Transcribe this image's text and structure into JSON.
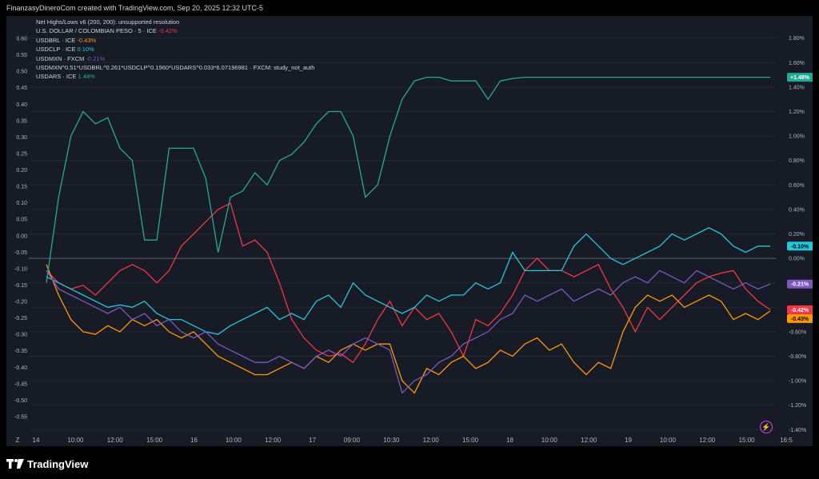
{
  "header": {
    "caption": "FinanzasyDineroCom created with TradingView.com, Sep 20, 2025 12:32 UTC-5"
  },
  "brand": {
    "name": "TradingView"
  },
  "chart_data": {
    "type": "line",
    "indicator": "Net Highs/Lows v6 (200, 200): unsupported resolution",
    "left_axis_ticks": [
      "0.60",
      "0.55",
      "0.50",
      "0.45",
      "0.40",
      "0.35",
      "0.30",
      "0.25",
      "0.20",
      "0.15",
      "0.10",
      "0.05",
      "0.00",
      "-0.05",
      "-0.10",
      "-0.15",
      "-0.20",
      "-0.25",
      "-0.30",
      "-0.35",
      "-0.40",
      "-0.45",
      "-0.50",
      "-0.55"
    ],
    "right_axis_ticks": [
      "1.80%",
      "1.60%",
      "1.40%",
      "1.20%",
      "1.00%",
      "0.80%",
      "0.60%",
      "0.40%",
      "0.20%",
      "0.00%",
      "-0.20%",
      "-0.40%",
      "-0.60%",
      "-0.80%",
      "-1.00%",
      "-1.20%",
      "-1.40%"
    ],
    "ylim_percent": [
      -1.45,
      1.85
    ],
    "x_ticks": [
      "14",
      "10:00",
      "12:00",
      "15:00",
      "16",
      "10:00",
      "12:00",
      "17",
      "09:00",
      "10:30",
      "12:00",
      "15:00",
      "18",
      "10:00",
      "12:00",
      "19",
      "10:00",
      "12:00",
      "15:00",
      "16:5"
    ],
    "series": [
      {
        "name": "U.S. DOLLAR / COLOMBIAN PESO · 5 · ICE",
        "last": "-0.42%",
        "color": "#f23645",
        "values": [
          -0.1,
          -0.2,
          -0.25,
          -0.22,
          -0.3,
          -0.2,
          -0.1,
          -0.05,
          -0.1,
          -0.2,
          -0.1,
          0.1,
          0.2,
          0.3,
          0.4,
          0.45,
          0.1,
          0.15,
          0.05,
          -0.2,
          -0.5,
          -0.65,
          -0.75,
          -0.8,
          -0.78,
          -0.85,
          -0.7,
          -0.5,
          -0.35,
          -0.55,
          -0.4,
          -0.5,
          -0.45,
          -0.6,
          -0.8,
          -0.5,
          -0.55,
          -0.45,
          -0.3,
          -0.1,
          0.0,
          -0.1,
          -0.1,
          -0.15,
          -0.1,
          -0.05,
          -0.25,
          -0.4,
          -0.6,
          -0.4,
          -0.5,
          -0.4,
          -0.3,
          -0.2,
          -0.15,
          -0.12,
          -0.1,
          -0.25,
          -0.35,
          -0.42
        ]
      },
      {
        "name": "USDBRL · ICE",
        "last": "-0.43%",
        "color": "#ff9800",
        "values": [
          -0.05,
          -0.3,
          -0.5,
          -0.6,
          -0.62,
          -0.55,
          -0.6,
          -0.5,
          -0.55,
          -0.5,
          -0.6,
          -0.65,
          -0.6,
          -0.7,
          -0.8,
          -0.85,
          -0.9,
          -0.95,
          -0.95,
          -0.9,
          -0.85,
          -0.9,
          -0.8,
          -0.85,
          -0.75,
          -0.7,
          -0.75,
          -0.7,
          -0.7,
          -1.0,
          -1.1,
          -0.9,
          -0.95,
          -0.85,
          -0.8,
          -0.9,
          -0.85,
          -0.75,
          -0.8,
          -0.7,
          -0.65,
          -0.75,
          -0.7,
          -0.85,
          -0.95,
          -0.85,
          -0.9,
          -0.6,
          -0.4,
          -0.3,
          -0.35,
          -0.3,
          -0.4,
          -0.35,
          -0.3,
          -0.35,
          -0.5,
          -0.45,
          -0.5,
          -0.43
        ]
      },
      {
        "name": "USDCLP · ICE",
        "last": "0.10%",
        "color": "#26c6da",
        "values": [
          -0.15,
          -0.2,
          -0.25,
          -0.3,
          -0.35,
          -0.4,
          -0.38,
          -0.4,
          -0.35,
          -0.45,
          -0.5,
          -0.5,
          -0.55,
          -0.6,
          -0.62,
          -0.55,
          -0.5,
          -0.45,
          -0.4,
          -0.5,
          -0.45,
          -0.5,
          -0.35,
          -0.3,
          -0.4,
          -0.2,
          -0.3,
          -0.35,
          -0.4,
          -0.45,
          -0.4,
          -0.3,
          -0.35,
          -0.3,
          -0.3,
          -0.2,
          -0.25,
          -0.2,
          0.05,
          -0.1,
          -0.1,
          -0.1,
          -0.1,
          0.1,
          0.2,
          0.1,
          0.0,
          -0.05,
          0.0,
          0.05,
          0.1,
          0.2,
          0.15,
          0.2,
          0.25,
          0.2,
          0.1,
          0.05,
          0.1,
          0.1
        ]
      },
      {
        "name": "USDMXN · FXCM",
        "last": "-0.21%",
        "color": "#7e57c2",
        "values": [
          -0.1,
          -0.25,
          -0.3,
          -0.35,
          -0.4,
          -0.45,
          -0.4,
          -0.5,
          -0.45,
          -0.55,
          -0.5,
          -0.6,
          -0.65,
          -0.6,
          -0.7,
          -0.75,
          -0.8,
          -0.85,
          -0.85,
          -0.8,
          -0.85,
          -0.9,
          -0.8,
          -0.75,
          -0.8,
          -0.7,
          -0.65,
          -0.7,
          -0.75,
          -1.1,
          -1.0,
          -0.95,
          -0.85,
          -0.8,
          -0.7,
          -0.65,
          -0.6,
          -0.5,
          -0.45,
          -0.3,
          -0.35,
          -0.3,
          -0.25,
          -0.35,
          -0.3,
          -0.25,
          -0.3,
          -0.2,
          -0.15,
          -0.2,
          -0.1,
          -0.15,
          -0.2,
          -0.1,
          -0.15,
          -0.2,
          -0.25,
          -0.2,
          -0.25,
          -0.21
        ]
      },
      {
        "name": "USDMXN^0.51*USDBRL^0.261*USDCLP^0.1960*USDARS^0.033*6.07196981 · FXCM: study_not_auth",
        "last": "",
        "color": "#d1d4dc",
        "values": []
      },
      {
        "name": "USDARS · ICE",
        "last": "1.48%",
        "color": "#22ab94",
        "values": [
          -0.2,
          0.5,
          1.0,
          1.2,
          1.1,
          1.15,
          0.9,
          0.8,
          0.15,
          0.15,
          0.9,
          0.9,
          0.9,
          0.65,
          0.05,
          0.5,
          0.55,
          0.7,
          0.6,
          0.8,
          0.85,
          0.95,
          1.1,
          1.2,
          1.2,
          1.0,
          0.5,
          0.6,
          1.0,
          1.3,
          1.45,
          1.48,
          1.48,
          1.45,
          1.45,
          1.45,
          1.3,
          1.45,
          1.47,
          1.48,
          1.48,
          1.48,
          1.48,
          1.48,
          1.48,
          1.48,
          1.48,
          1.48,
          1.48,
          1.48,
          1.48,
          1.48,
          1.48,
          1.48,
          1.48,
          1.48,
          1.48,
          1.48,
          1.48,
          1.48
        ]
      }
    ]
  }
}
